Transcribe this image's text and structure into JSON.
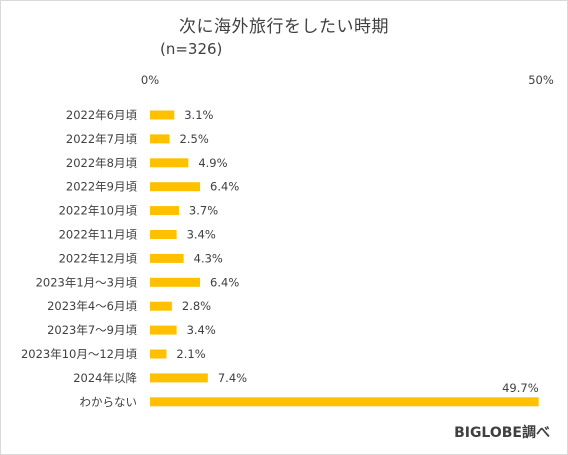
{
  "chart_data": {
    "type": "bar",
    "orientation": "horizontal",
    "title": "次に海外旅行をしたい時期",
    "subtitle": "(n=326)",
    "categories": [
      "2022年6月頃",
      "2022年7月頃",
      "2022年8月頃",
      "2022年9月頃",
      "2022年10月頃",
      "2022年11月頃",
      "2022年12月頃",
      "2023年1月～3月頃",
      "2023年4～6月頃",
      "2023年7～9月頃",
      "2023年10月～12月頃",
      "2024年以降",
      "わからない"
    ],
    "values": [
      3.1,
      2.5,
      4.9,
      6.4,
      3.7,
      3.4,
      4.3,
      6.4,
      2.8,
      3.4,
      2.1,
      7.4,
      49.7
    ],
    "value_labels": [
      "3.1%",
      "2.5%",
      "4.9%",
      "6.4%",
      "3.7%",
      "3.4%",
      "4.3%",
      "6.4%",
      "2.8%",
      "3.4%",
      "2.1%",
      "7.4%",
      "49.7%"
    ],
    "xlim": [
      0,
      50
    ],
    "x_tick_labels": [
      "0%",
      "50%"
    ],
    "bar_color": "#FFC000",
    "grid": false,
    "legend": "none"
  },
  "credit": "BIGLOBE調べ"
}
